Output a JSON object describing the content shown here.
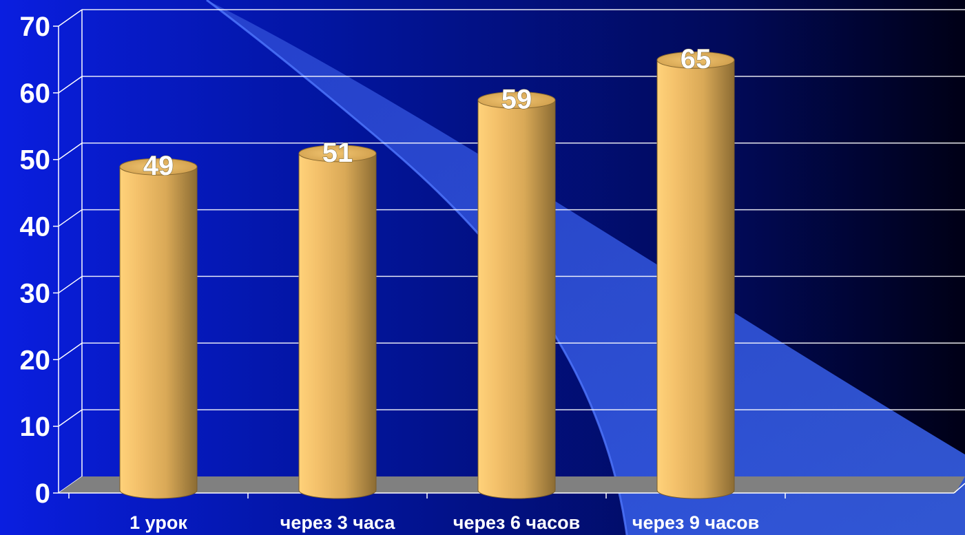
{
  "chart_data": {
    "type": "bar",
    "title": "",
    "xlabel": "",
    "ylabel": "",
    "categories": [
      "1 урок",
      "через 3 часа",
      "через 6 часов",
      "через 9 часов"
    ],
    "values": [
      49,
      51,
      59,
      65
    ],
    "data_labels": [
      "49",
      "51",
      "59",
      "65"
    ],
    "ylim": [
      0,
      70
    ],
    "yticks": [
      "0",
      "10",
      "20",
      "30",
      "40",
      "50",
      "60",
      "70"
    ],
    "grid": true,
    "legend": "none",
    "bar_style": "3d-cylinder",
    "colors": {
      "bar_light": "#ffd27a",
      "bar_mid": "#d9a957",
      "bar_dark": "#8c6c33",
      "bar_top": "#e8b860",
      "floor": "#808080",
      "background_left": "#0a1ee0",
      "background_right": "#000016",
      "swoosh": "#3a64f2",
      "grid": "#ffffff",
      "text": "#ffffff"
    }
  }
}
